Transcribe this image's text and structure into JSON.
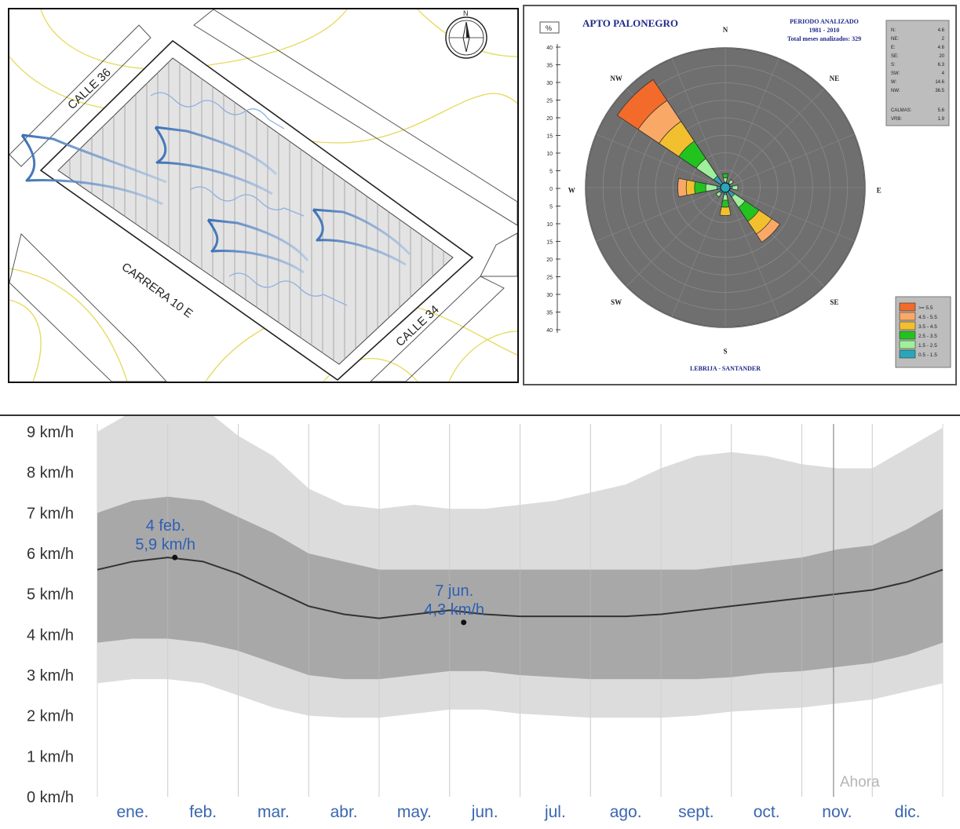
{
  "site_plan": {
    "streets": {
      "top": "CALLE 36",
      "bottom_left": "CARRERA 10 E",
      "bottom_right": "CALLE 34"
    },
    "compass_label": "N",
    "colors": {
      "arrow": "#3a6fb5",
      "contour": "#e5d95a",
      "hatch": "#999999"
    }
  },
  "wind_rose": {
    "title": "APTO PALONEGRO",
    "period": {
      "line1": "PERIODO ANALIZADO",
      "line2": "1981 - 2010",
      "line3": "Total meses analizados: 329"
    },
    "footer": "LEBRIJA - SANTANDER",
    "unit_label": "%",
    "scale_ticks": [
      "40",
      "35",
      "30",
      "25",
      "20",
      "15",
      "10",
      "5",
      "0",
      "5",
      "10",
      "15",
      "20",
      "25",
      "30",
      "35",
      "40"
    ],
    "directions": [
      "N",
      "NE",
      "E",
      "SE",
      "S",
      "SW",
      "W",
      "NW"
    ],
    "frequency_table": [
      {
        "dir": "N:",
        "val": "4.6"
      },
      {
        "dir": "NE:",
        "val": "2"
      },
      {
        "dir": "E:",
        "val": "4.6"
      },
      {
        "dir": "SE:",
        "val": "20"
      },
      {
        "dir": "S:",
        "val": "6.3"
      },
      {
        "dir": "SW:",
        "val": "4"
      },
      {
        "dir": "W:",
        "val": "14.6"
      },
      {
        "dir": "NW:",
        "val": "36.5"
      }
    ],
    "calm": [
      {
        "label": "CALMAS:",
        "val": "5.6"
      },
      {
        "label": "VRB:",
        "val": "1.9"
      }
    ],
    "legend": [
      {
        "label": ">= 5.5",
        "color": "#f26b2a"
      },
      {
        "label": "4.5 - 5.5",
        "color": "#f9a866"
      },
      {
        "label": "3.5 - 4.5",
        "color": "#f2bf2f"
      },
      {
        "label": "2.5 - 3.5",
        "color": "#22c31e"
      },
      {
        "label": "1.5 - 2.5",
        "color": "#9ef09a"
      },
      {
        "label": "0.5 - 1.5",
        "color": "#2aa6b8"
      }
    ]
  },
  "chart_data": {
    "type": "area",
    "title": "",
    "xlabel": "",
    "ylabel": "",
    "ylim": [
      0,
      9.5
    ],
    "y_ticks": [
      "0 km/h",
      "1 km/h",
      "2 km/h",
      "3 km/h",
      "4 km/h",
      "5 km/h",
      "6 km/h",
      "7 km/h",
      "8 km/h",
      "9 km/h"
    ],
    "categories": [
      "ene.",
      "feb.",
      "mar.",
      "abr.",
      "may.",
      "jun.",
      "jul.",
      "ago.",
      "sept.",
      "oct.",
      "nov.",
      "dic."
    ],
    "x": [
      0,
      0.5,
      1,
      1.5,
      2,
      2.5,
      3,
      3.5,
      4,
      4.5,
      5,
      5.5,
      6,
      6.5,
      7,
      7.5,
      8,
      8.5,
      9,
      9.5,
      10,
      10.5,
      11,
      11.5,
      12
    ],
    "series": [
      {
        "name": "",
        "role": "p90",
        "values": [
          9.0,
          9.5,
          9.7,
          9.6,
          8.9,
          8.4,
          7.6,
          7.2,
          7.1,
          7.2,
          7.1,
          7.1,
          7.2,
          7.3,
          7.5,
          7.7,
          8.1,
          8.4,
          8.5,
          8.4,
          8.2,
          8.1,
          8.1,
          8.6,
          9.1
        ]
      },
      {
        "name": "",
        "role": "p75",
        "values": [
          7.0,
          7.3,
          7.4,
          7.3,
          6.9,
          6.5,
          6.0,
          5.8,
          5.6,
          5.6,
          5.6,
          5.6,
          5.6,
          5.6,
          5.6,
          5.6,
          5.6,
          5.6,
          5.7,
          5.8,
          5.9,
          6.1,
          6.2,
          6.6,
          7.1
        ]
      },
      {
        "name": "",
        "role": "average",
        "values": [
          5.6,
          5.8,
          5.9,
          5.8,
          5.5,
          5.1,
          4.7,
          4.5,
          4.4,
          4.5,
          4.6,
          4.5,
          4.45,
          4.45,
          4.45,
          4.45,
          4.5,
          4.6,
          4.7,
          4.8,
          4.9,
          5.0,
          5.1,
          5.3,
          5.6
        ]
      },
      {
        "name": "",
        "role": "p25",
        "values": [
          3.8,
          3.9,
          3.9,
          3.8,
          3.6,
          3.3,
          3.0,
          2.9,
          2.9,
          3.0,
          3.1,
          3.1,
          3.0,
          2.95,
          2.9,
          2.9,
          2.9,
          2.9,
          2.95,
          3.05,
          3.1,
          3.2,
          3.3,
          3.5,
          3.8
        ]
      },
      {
        "name": "",
        "role": "p10",
        "values": [
          2.8,
          2.9,
          2.9,
          2.8,
          2.5,
          2.2,
          2.0,
          1.95,
          1.95,
          2.05,
          2.15,
          2.15,
          2.05,
          2.0,
          1.95,
          1.95,
          1.95,
          2.0,
          2.1,
          2.15,
          2.2,
          2.3,
          2.4,
          2.6,
          2.8
        ]
      }
    ],
    "annotations": [
      {
        "x": 1.1,
        "y": 5.9,
        "line1": "4 feb.",
        "line2": "5,9 km/h"
      },
      {
        "x": 5.2,
        "y": 4.3,
        "line1": "7 jun.",
        "line2": "4,3 km/h"
      }
    ],
    "now_label": "Ahora",
    "now_x": 10.45,
    "colors": {
      "outer_band": "#dcdcdc",
      "inner_band": "#a8a8a8",
      "line": "#333333",
      "annotation": "#2f5fb3",
      "tick_label": "#3a66b0"
    }
  }
}
